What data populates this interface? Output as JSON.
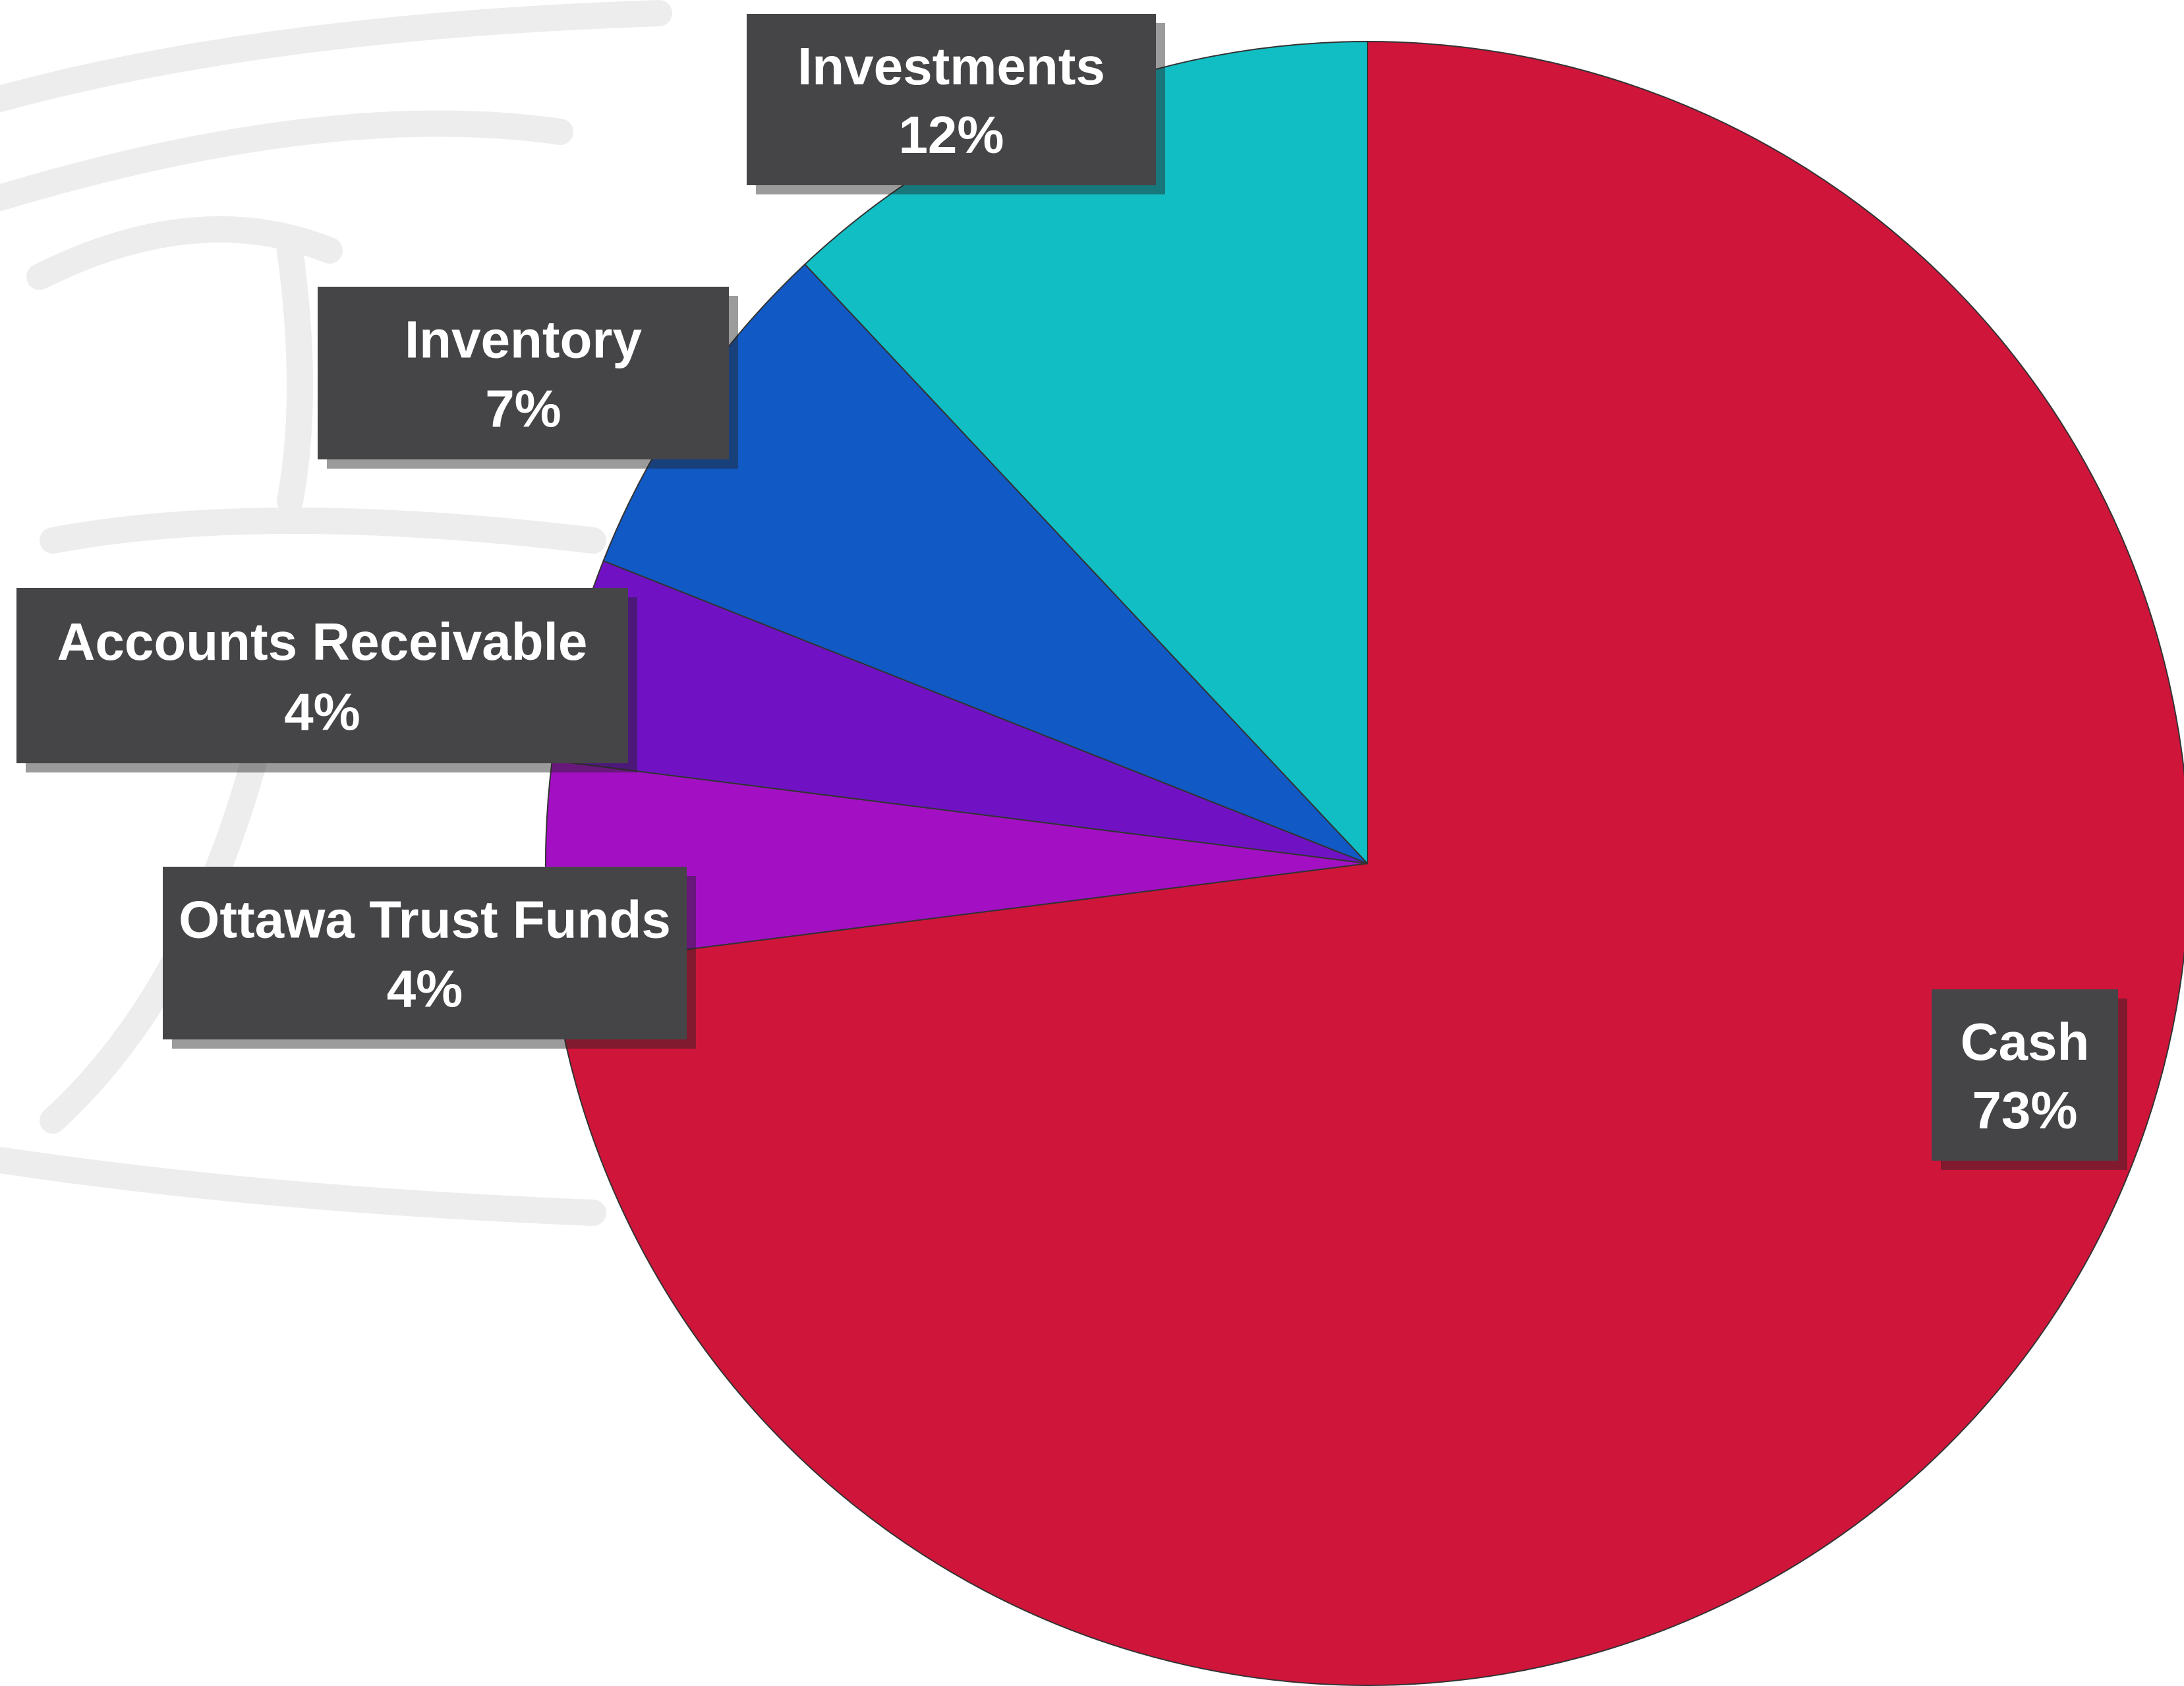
{
  "chart_data": {
    "type": "pie",
    "categories": [
      "Cash",
      "Ottawa Trust Funds",
      "Accounts Receivable",
      "Inventory",
      "Investments"
    ],
    "values": [
      73,
      4,
      4,
      7,
      12
    ],
    "value_labels": [
      "73%",
      "4%",
      "4%",
      "7%",
      "12%"
    ],
    "colors": [
      "#d0153a",
      "#a310c4",
      "#7012c4",
      "#1159c4",
      "#11bec4"
    ]
  }
}
